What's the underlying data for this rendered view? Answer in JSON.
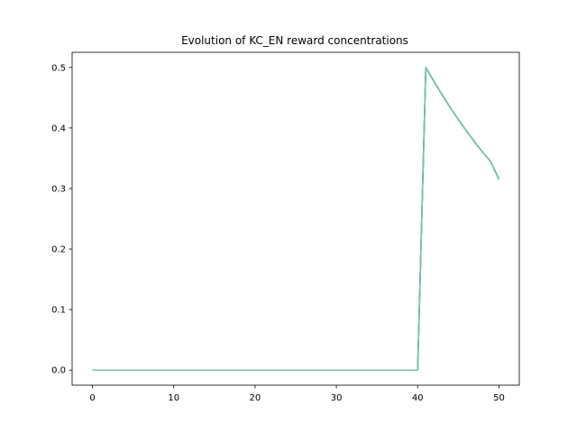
{
  "chart_data": {
    "type": "line",
    "title": "Evolution of KC_EN reward concentrations",
    "xlabel": "",
    "ylabel": "",
    "xlim": [
      -2.5,
      52.5
    ],
    "ylim": [
      -0.025,
      0.525
    ],
    "xticks": [
      0,
      10,
      20,
      30,
      40,
      50
    ],
    "xtick_labels": [
      "0",
      "10",
      "20",
      "30",
      "40",
      "50"
    ],
    "yticks": [
      0.0,
      0.1,
      0.2,
      0.3,
      0.4,
      0.5
    ],
    "ytick_labels": [
      "0.0",
      "0.1",
      "0.2",
      "0.3",
      "0.4",
      "0.5"
    ],
    "grid": false,
    "legend": "none",
    "series": [
      {
        "color": "#1f77b4",
        "x": [
          0,
          40,
          41,
          42,
          43,
          44,
          45,
          46,
          47,
          48,
          49,
          50
        ],
        "y": [
          0.0,
          0.0,
          0.5,
          0.477,
          0.455,
          0.434,
          0.414,
          0.395,
          0.377,
          0.36,
          0.344,
          0.315
        ]
      },
      {
        "color": "#2ca02c",
        "x": [
          0,
          40,
          41,
          42,
          43,
          44,
          45,
          46,
          47,
          48,
          49,
          50
        ],
        "y": [
          0.0,
          0.0,
          0.5,
          0.477,
          0.455,
          0.434,
          0.414,
          0.395,
          0.377,
          0.36,
          0.344,
          0.315
        ]
      },
      {
        "color": "#17becf",
        "x": [
          0,
          40,
          41,
          42,
          43,
          44,
          45,
          46,
          47,
          48,
          49,
          50
        ],
        "y": [
          0.0,
          0.0,
          0.5,
          0.477,
          0.455,
          0.434,
          0.414,
          0.395,
          0.377,
          0.36,
          0.344,
          0.315
        ]
      },
      {
        "color": "#7fbfa8",
        "x": [
          0,
          40,
          41,
          42,
          43,
          44,
          45,
          46,
          47,
          48,
          49,
          50
        ],
        "y": [
          0.0,
          0.0,
          0.5,
          0.477,
          0.455,
          0.434,
          0.414,
          0.395,
          0.377,
          0.36,
          0.344,
          0.315
        ]
      }
    ]
  }
}
